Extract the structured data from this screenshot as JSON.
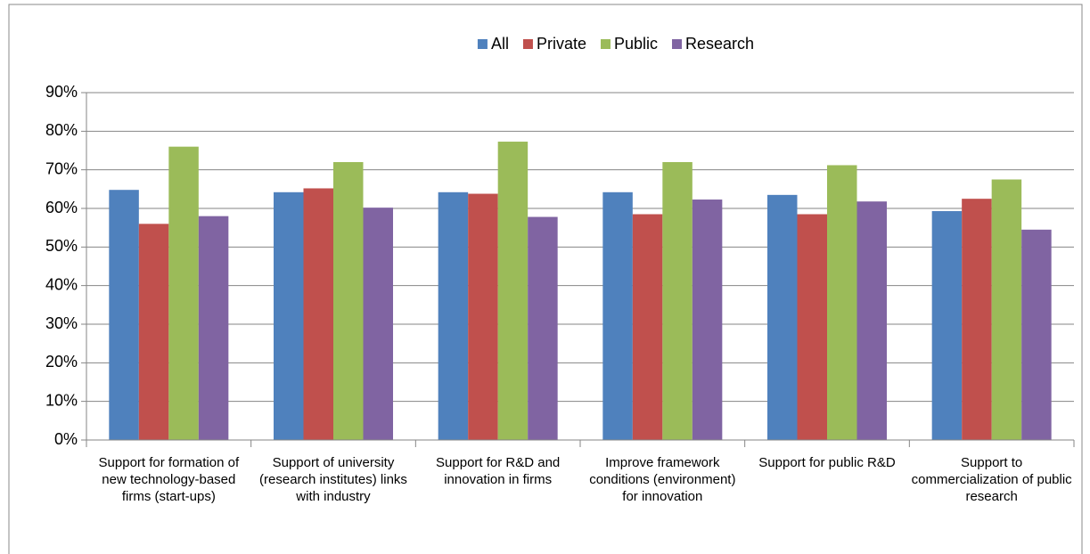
{
  "chart_data": {
    "type": "bar",
    "categories": [
      "Support for formation of new technology-based firms (start-ups)",
      "Support of university (research institutes) links with industry",
      "Support for R&D and innovation in firms",
      "Improve framework conditions (environment) for innovation",
      "Support for public R&D",
      "Support to commercialization of public research"
    ],
    "series": [
      {
        "name": "All",
        "color": "#4f81bd",
        "values": [
          64.8,
          64.2,
          64.2,
          64.2,
          63.5,
          59.3
        ]
      },
      {
        "name": "Private",
        "color": "#c0504d",
        "values": [
          56,
          65.2,
          63.8,
          58.5,
          58.5,
          62.5
        ]
      },
      {
        "name": "Public",
        "color": "#9bbb59",
        "values": [
          76,
          72,
          77.3,
          72,
          71.2,
          67.5
        ]
      },
      {
        "name": "Research",
        "color": "#8064a2",
        "values": [
          58,
          60.2,
          57.8,
          62.3,
          61.8,
          54.5
        ]
      }
    ],
    "ylim": [
      0,
      90
    ],
    "yticks": [
      {
        "value": 0,
        "label": "0%"
      },
      {
        "value": 10,
        "label": "10%"
      },
      {
        "value": 20,
        "label": "20%"
      },
      {
        "value": 30,
        "label": "30%"
      },
      {
        "value": 40,
        "label": "40%"
      },
      {
        "value": 50,
        "label": "50%"
      },
      {
        "value": 60,
        "label": "60%"
      },
      {
        "value": 70,
        "label": "70%"
      },
      {
        "value": 80,
        "label": "80%"
      },
      {
        "value": 90,
        "label": "90%"
      }
    ],
    "grid": true,
    "legend": "top"
  }
}
